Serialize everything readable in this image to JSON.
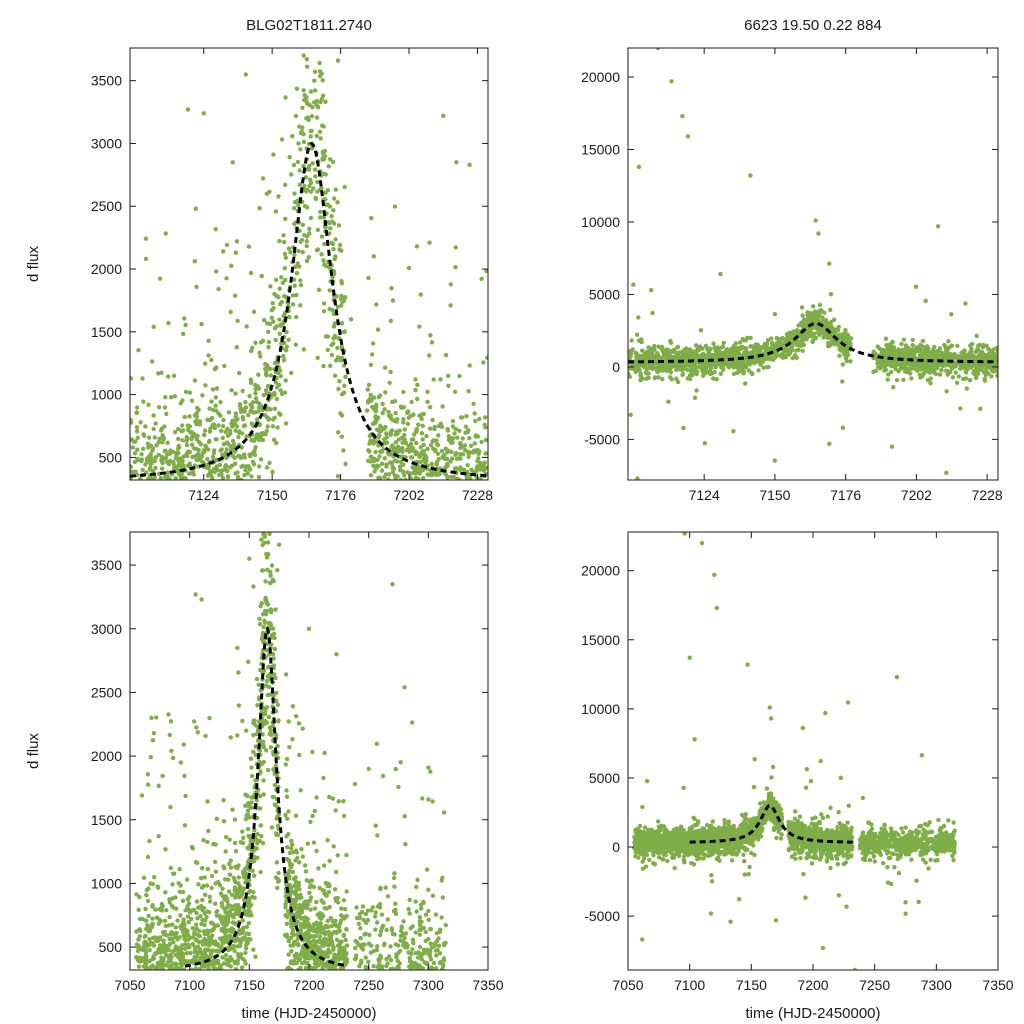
{
  "figure": {
    "header_left": "BLG02T1811.2740",
    "header_right": "6623  19.50  0.22  884",
    "point_color": "#7fad48",
    "model_color": "#000000"
  },
  "model_curve": {
    "description_free_params": true,
    "t0": 7165,
    "tE": 9.5,
    "peak": 3000,
    "baseline": 300
  },
  "chart_data": [
    {
      "type": "scatter",
      "panel": "top-left",
      "title": "BLG02T1811.2740",
      "xlabel": "",
      "ylabel": "d flux",
      "xlim": [
        7096,
        7232
      ],
      "ylim": [
        320,
        3760
      ],
      "xticks": [
        7124,
        7150,
        7176,
        7202,
        7228
      ],
      "yticks": [
        500,
        1000,
        1500,
        2000,
        2500,
        3000,
        3500
      ],
      "series": [
        {
          "kind": "points",
          "color": "#7fad48",
          "n": 1800,
          "x": [
            7097,
            7105,
            7118,
            7121,
            7124,
            7135,
            7140,
            7148,
            7155,
            7160,
            7162,
            7163,
            7165,
            7170,
            7175,
            7180,
            7188,
            7195,
            7200,
            7205,
            7210,
            7215,
            7220,
            7225,
            7228
          ],
          "y": [
            380,
            1540,
            3270,
            2480,
            3240,
            2850,
            3550,
            2600,
            2400,
            3000,
            3700,
            3200,
            3100,
            2900,
            3660,
            1600,
            1320,
            1180,
            900,
            2180,
            900,
            3220,
            2850,
            2830,
            470
          ]
        },
        {
          "kind": "model",
          "name": "",
          "x_range": [
            7096,
            7232
          ]
        }
      ],
      "grid": false
    },
    {
      "type": "scatter",
      "panel": "top-right",
      "title": "6623  19.50  0.22  884",
      "xlabel": "",
      "ylabel": "",
      "xlim": [
        7096,
        7232
      ],
      "ylim": [
        -7800,
        22000
      ],
      "xticks": [
        7124,
        7150,
        7176,
        7202,
        7228
      ],
      "yticks": [
        -5000,
        0,
        5000,
        10000,
        15000,
        20000
      ],
      "series": [
        {
          "kind": "points",
          "color": "#7fad48",
          "n": 2000,
          "x": [
            7097,
            7100,
            7107,
            7112,
            7116,
            7118,
            7130,
            7141,
            7160,
            7165,
            7166,
            7170,
            7175,
            7193,
            7210,
            7213
          ],
          "y": [
            -3300,
            13800,
            22000,
            19700,
            17300,
            15900,
            6400,
            13200,
            4100,
            10100,
            9200,
            -5300,
            -4200,
            -5500,
            9700,
            -7300
          ]
        },
        {
          "kind": "model",
          "name": "",
          "x_range": [
            7096,
            7232
          ]
        }
      ],
      "grid": false
    },
    {
      "type": "scatter",
      "panel": "bottom-left",
      "title": "",
      "xlabel": "time (HJD-2450000)",
      "ylabel": "d flux",
      "xlim": [
        7050,
        7350
      ],
      "ylim": [
        320,
        3760
      ],
      "xticks": [
        7050,
        7100,
        7150,
        7200,
        7250,
        7300,
        7350
      ],
      "yticks": [
        500,
        1000,
        1500,
        2000,
        2500,
        3000,
        3500
      ],
      "series": [
        {
          "kind": "points",
          "color": "#7fad48",
          "n": 2800,
          "x": [
            7063,
            7068,
            7070,
            7105,
            7110,
            7140,
            7150,
            7160,
            7163,
            7175,
            7200,
            7223,
            7250,
            7270,
            7280,
            7300
          ],
          "y": [
            800,
            2300,
            2180,
            3270,
            3230,
            2850,
            3550,
            3700,
            3740,
            3660,
            3000,
            2800,
            1900,
            3350,
            2540,
            950
          ]
        },
        {
          "kind": "model",
          "name": "",
          "x_range": [
            7096,
            7232
          ]
        }
      ],
      "grid": false
    },
    {
      "type": "scatter",
      "panel": "bottom-right",
      "title": "",
      "xlabel": "time (HJD-2450000)",
      "ylabel": "",
      "xlim": [
        7050,
        7350
      ],
      "ylim": [
        -8900,
        22800
      ],
      "xticks": [
        7050,
        7100,
        7150,
        7200,
        7250,
        7300,
        7350
      ],
      "yticks": [
        -5000,
        0,
        5000,
        10000,
        15000,
        20000
      ],
      "series": [
        {
          "kind": "points",
          "color": "#7fad48",
          "n": 3000,
          "x": [
            7096,
            7100,
            7104,
            7110,
            7120,
            7122,
            7147,
            7165,
            7166,
            7170,
            7208,
            7210,
            7234,
            7268,
            7275
          ],
          "y": [
            22700,
            13700,
            7800,
            22000,
            19700,
            17300,
            13200,
            10100,
            9300,
            -5300,
            -7300,
            9700,
            -8900,
            12300,
            -4000
          ]
        },
        {
          "kind": "model",
          "name": "",
          "x_range": [
            7100,
            7232
          ]
        }
      ],
      "grid": false
    }
  ]
}
